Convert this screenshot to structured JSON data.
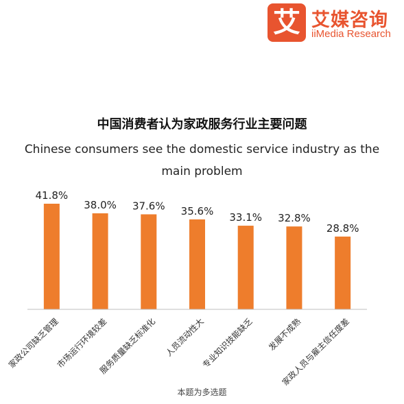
{
  "logo": {
    "mark": "艾",
    "name_cn": "艾媒咨询",
    "name_en": "iiMedia Research",
    "color": "#e8542f"
  },
  "note": "本题为多选题",
  "chart_data": {
    "type": "bar",
    "title": "中国消费者认为家政服务行业主要问题",
    "subtitle": "Chinese consumers see the domestic service industry as the main problem",
    "categories": [
      "家政公司缺乏管理",
      "市场运行环境较差",
      "服务质量缺乏标准化",
      "人员流动性大",
      "专业知识技能缺乏",
      "发展不成熟",
      "家政人员与雇主信任度差"
    ],
    "values": [
      41.8,
      38.0,
      37.6,
      35.6,
      33.1,
      32.8,
      28.8
    ],
    "value_labels": [
      "41.8%",
      "38.0%",
      "37.6%",
      "35.6%",
      "33.1%",
      "32.8%",
      "28.8%"
    ],
    "unit": "%",
    "bar_color": "#ee7d2c",
    "axis_color": "#bfbfbf",
    "ylim": [
      0,
      41.8
    ],
    "grid": false,
    "legend": "none"
  }
}
